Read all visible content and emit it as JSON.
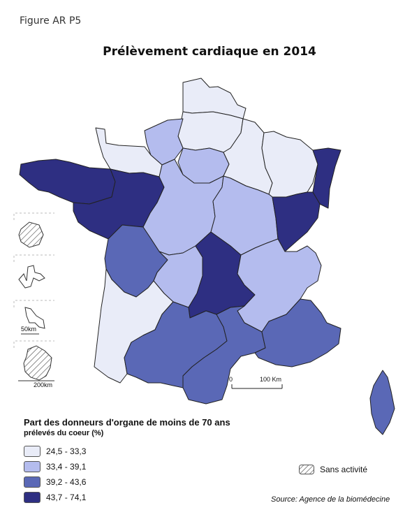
{
  "figure_label": "Figure AR P5",
  "title": "Prélèvement cardiaque en 2014",
  "legend": {
    "title": "Part des donneurs d'organe de moins de 70 ans",
    "subtitle": "prélevés du coeur (%)",
    "classes": [
      {
        "label": "24,5 - 33,3",
        "color": "#e9ecf8"
      },
      {
        "label": "33,4 - 39,1",
        "color": "#b4bcee"
      },
      {
        "label": "39,2 - 43,6",
        "color": "#5a68b6"
      },
      {
        "label": "43,7 - 74,1",
        "color": "#2e2f82"
      }
    ],
    "no_activity": "Sans activité"
  },
  "scale": {
    "zero": "0",
    "distance": "100 Km"
  },
  "insets": {
    "scale_50": "50km",
    "scale_200": "200km"
  },
  "source": "Source: Agence de la biomédecine"
}
